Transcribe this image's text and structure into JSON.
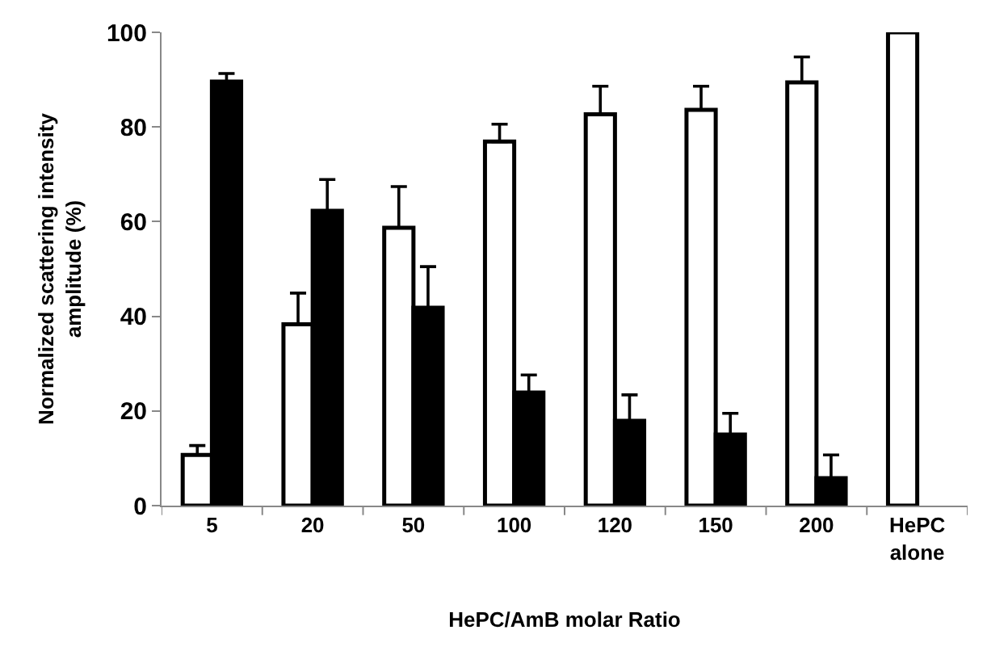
{
  "chart_data": {
    "type": "bar",
    "xlabel": "HePC/AmB molar Ratio",
    "ylabel": "Normalized scattering intensity\namplitude (%)",
    "categories": [
      "5",
      "20",
      "50",
      "100",
      "120",
      "150",
      "200",
      "HePC\nalone"
    ],
    "series": [
      {
        "color": "#ffffff",
        "values": [
          10.7,
          38.3,
          58.7,
          76.9,
          82.7,
          83.6,
          89.4,
          100
        ],
        "errors": [
          [
            10.7,
            12.7
          ],
          [
            38.3,
            44.9
          ],
          [
            58.7,
            67.4
          ],
          [
            76.9,
            80.6
          ],
          [
            82.7,
            88.6
          ],
          [
            83.6,
            88.6
          ],
          [
            89.4,
            94.8
          ],
          null
        ]
      },
      {
        "color": "#000000",
        "values": [
          89.6,
          62.3,
          41.8,
          23.9,
          17.9,
          15.0,
          5.8,
          null
        ],
        "errors": [
          [
            89.6,
            91.3
          ],
          [
            62.3,
            68.9
          ],
          [
            41.8,
            50.5
          ],
          [
            23.9,
            27.6
          ],
          [
            17.9,
            23.4
          ],
          [
            15.0,
            19.5
          ],
          [
            5.8,
            10.7
          ],
          null
        ]
      }
    ],
    "ylim": [
      0,
      100
    ],
    "yticks": [
      0,
      20,
      40,
      60,
      80,
      100
    ]
  }
}
